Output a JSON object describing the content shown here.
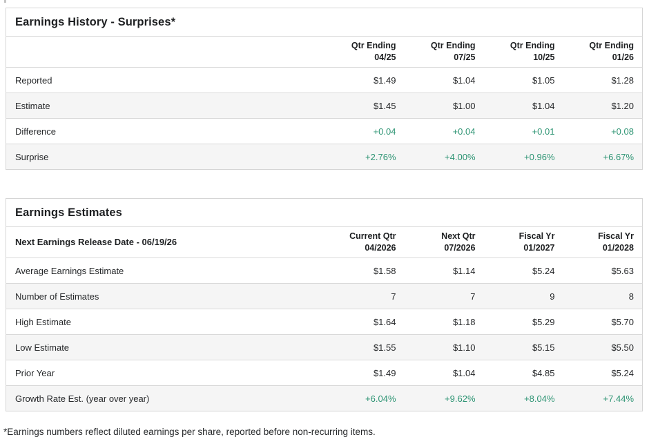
{
  "colors": {
    "positive_green": "#2d9473",
    "text_dark": "#26282a",
    "row_alt_bg": "#f5f5f5",
    "table_border": "#d5d5d5"
  },
  "earnings_history": {
    "title": "Earnings History - Surprises*",
    "columns": [
      {
        "line1": "Qtr Ending",
        "line2": "04/25"
      },
      {
        "line1": "Qtr Ending",
        "line2": "07/25"
      },
      {
        "line1": "Qtr Ending",
        "line2": "10/25"
      },
      {
        "line1": "Qtr Ending",
        "line2": "01/26"
      }
    ],
    "rows": [
      {
        "label": "Reported",
        "values": [
          "$1.49",
          "$1.04",
          "$1.05",
          "$1.28"
        ]
      },
      {
        "label": "Estimate",
        "values": [
          "$1.45",
          "$1.00",
          "$1.04",
          "$1.20"
        ]
      },
      {
        "label": "Difference",
        "values": [
          "+0.04",
          "+0.04",
          "+0.01",
          "+0.08"
        ]
      },
      {
        "label": "Surprise",
        "values": [
          "+2.76%",
          "+4.00%",
          "+0.96%",
          "+6.67%"
        ]
      }
    ]
  },
  "earnings_estimates": {
    "title": "Earnings Estimates",
    "release_date_label": "Next Earnings Release Date - 06/19/26",
    "columns": [
      {
        "line1": "Current Qtr",
        "line2": "04/2026"
      },
      {
        "line1": "Next Qtr",
        "line2": "07/2026"
      },
      {
        "line1": "Fiscal Yr",
        "line2": "01/2027"
      },
      {
        "line1": "Fiscal Yr",
        "line2": "01/2028"
      }
    ],
    "rows": [
      {
        "label": "Average Earnings Estimate",
        "values": [
          "$1.58",
          "$1.14",
          "$5.24",
          "$5.63"
        ]
      },
      {
        "label": "Number of Estimates",
        "values": [
          "7",
          "7",
          "9",
          "8"
        ]
      },
      {
        "label": "High Estimate",
        "values": [
          "$1.64",
          "$1.18",
          "$5.29",
          "$5.70"
        ]
      },
      {
        "label": "Low Estimate",
        "values": [
          "$1.55",
          "$1.10",
          "$5.15",
          "$5.50"
        ]
      },
      {
        "label": "Prior Year",
        "values": [
          "$1.49",
          "$1.04",
          "$4.85",
          "$5.24"
        ]
      },
      {
        "label": "Growth Rate Est. (year over year)",
        "values": [
          "+6.04%",
          "+9.62%",
          "+8.04%",
          "+7.44%"
        ]
      }
    ]
  },
  "footnote": "*Earnings numbers reflect diluted earnings per share, reported before non-recurring items."
}
